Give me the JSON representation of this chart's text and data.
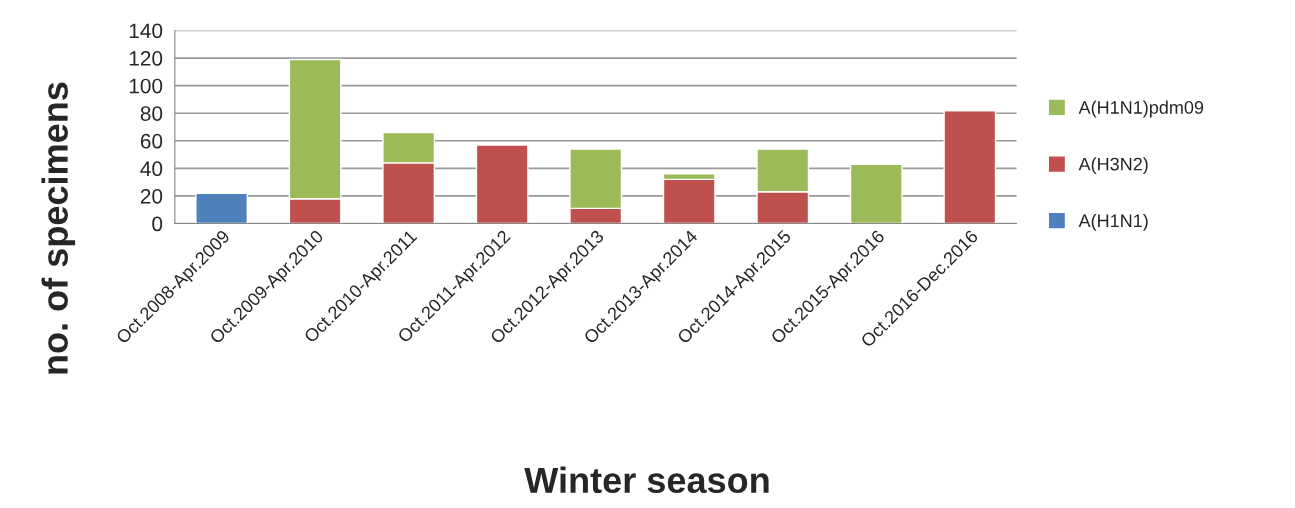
{
  "chart_data": {
    "type": "bar",
    "stacked": true,
    "xlabel": "Winter season",
    "ylabel": "no. of specimens",
    "categories": [
      "Oct.2008-Apr.2009",
      "Oct.2009-Apr.2010",
      "Oct.2010-Apr.2011",
      "Oct.2011-Apr.2012",
      "Oct.2012-Apr.2013",
      "Oct.2013-Apr.2014",
      "Oct.2014-Apr.2015",
      "Oct.2015-Apr.2016",
      "Oct.2016-Dec.2016"
    ],
    "series": [
      {
        "name": "A(H1N1)",
        "color": "#4f81bd",
        "values": [
          22,
          null,
          null,
          null,
          null,
          null,
          null,
          null,
          null
        ]
      },
      {
        "name": "A(H3N2)",
        "color": "#c0504d",
        "values": [
          null,
          18,
          44,
          57,
          11,
          32,
          23,
          null,
          82
        ]
      },
      {
        "name": "A(H1N1)pdm09",
        "color": "#9bbb59",
        "values": [
          null,
          101,
          22,
          null,
          43,
          4,
          31,
          43,
          null
        ]
      }
    ],
    "ylim": [
      0,
      140
    ],
    "yticks": [
      0,
      20,
      40,
      60,
      80,
      100,
      120,
      140
    ],
    "grid": "y",
    "legend": "right"
  }
}
